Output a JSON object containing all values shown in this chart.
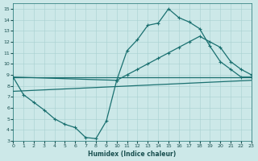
{
  "xlabel": "Humidex (Indice chaleur)",
  "bg_color": "#cce8e8",
  "line_color": "#1a7070",
  "grid_color": "#a8d0d0",
  "xlim": [
    0,
    23
  ],
  "ylim": [
    3,
    15.5
  ],
  "xticks": [
    0,
    1,
    2,
    3,
    4,
    5,
    6,
    7,
    8,
    9,
    10,
    11,
    12,
    13,
    14,
    15,
    16,
    17,
    18,
    19,
    20,
    21,
    22,
    23
  ],
  "yticks": [
    3,
    4,
    5,
    6,
    7,
    8,
    9,
    10,
    11,
    12,
    13,
    14,
    15
  ],
  "series": [
    {
      "x": [
        0,
        1,
        2,
        3,
        4,
        5,
        6,
        7,
        8,
        9,
        10,
        11,
        12,
        13,
        14,
        15,
        16,
        17,
        18,
        19,
        20,
        21,
        22,
        23
      ],
      "y": [
        8.8,
        7.2,
        6.5,
        5.8,
        5.0,
        4.5,
        4.2,
        3.3,
        3.2,
        4.8,
        8.5,
        11.2,
        12.2,
        13.5,
        13.7,
        15.0,
        14.2,
        13.8,
        13.2,
        11.6,
        10.2,
        9.5,
        8.8,
        8.8
      ],
      "marker": true,
      "lw": 0.9
    },
    {
      "x": [
        0,
        10,
        11,
        12,
        13,
        14,
        15,
        16,
        17,
        18,
        19,
        20,
        21,
        22,
        23
      ],
      "y": [
        8.8,
        8.5,
        9.0,
        9.5,
        10.0,
        10.5,
        11.0,
        11.5,
        12.0,
        12.5,
        12.0,
        11.5,
        10.2,
        9.5,
        9.0
      ],
      "marker": true,
      "lw": 0.9
    },
    {
      "x": [
        0,
        23
      ],
      "y": [
        8.8,
        8.8
      ],
      "marker": false,
      "lw": 0.9
    },
    {
      "x": [
        0,
        23
      ],
      "y": [
        7.5,
        8.5
      ],
      "marker": false,
      "lw": 0.9
    }
  ]
}
